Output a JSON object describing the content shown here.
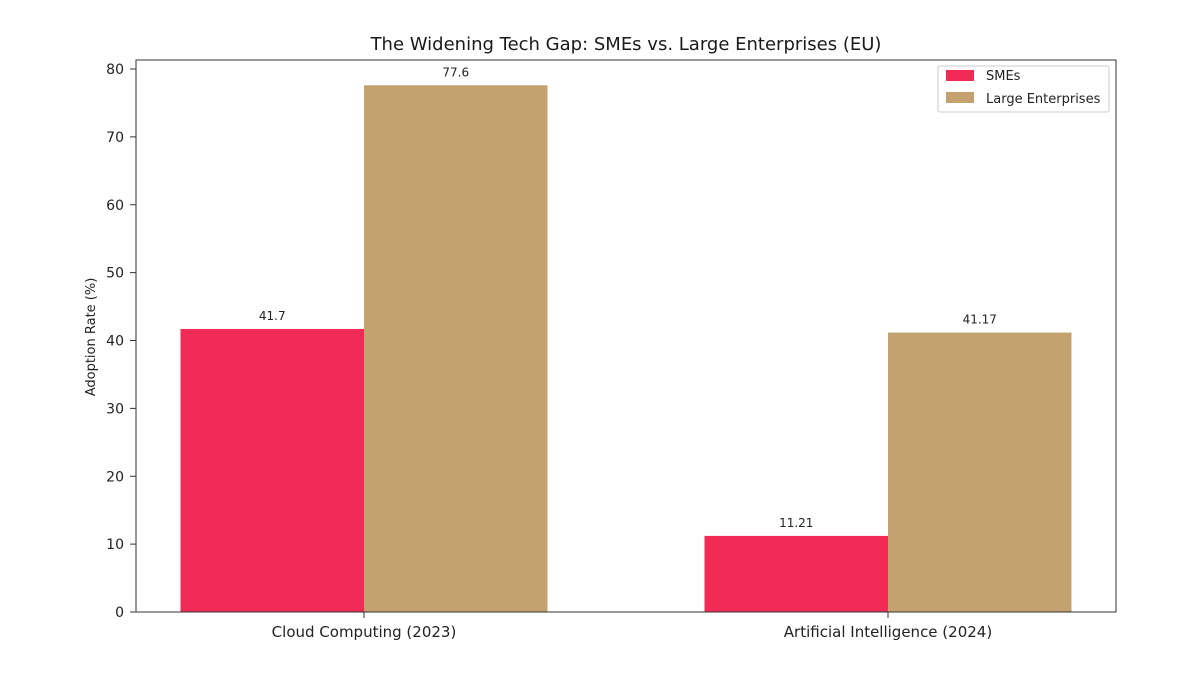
{
  "chart_data": {
    "type": "bar",
    "title": "The Widening Tech Gap: SMEs vs. Large Enterprises (EU)",
    "xlabel": "",
    "ylabel": "Adoption Rate (%)",
    "categories": [
      "Cloud Computing (2023)",
      "Artificial Intelligence (2024)"
    ],
    "series": [
      {
        "name": "SMEs",
        "values": [
          41.7,
          11.21
        ],
        "color": "#f12b55"
      },
      {
        "name": "Large Enterprises",
        "values": [
          77.6,
          41.17
        ],
        "color": "#c4a26f"
      }
    ],
    "data_labels": [
      [
        "41.7",
        "11.21"
      ],
      [
        "77.6",
        "41.17"
      ]
    ],
    "ylim": [
      0,
      80
    ],
    "yticks": [
      0,
      10,
      20,
      30,
      40,
      50,
      60,
      70,
      80
    ],
    "grid": false,
    "legend_position": "top-right"
  }
}
